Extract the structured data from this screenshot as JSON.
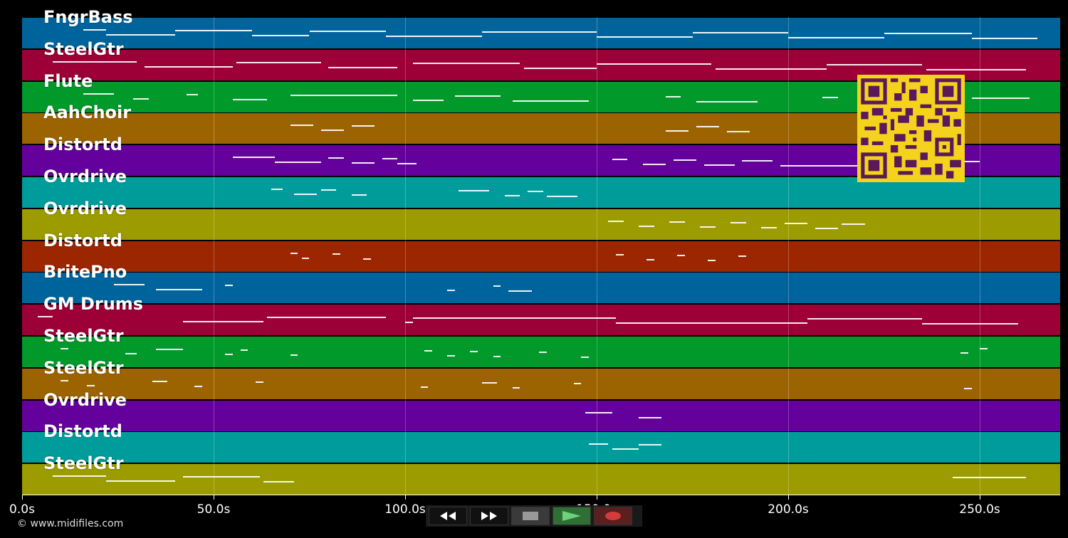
{
  "tracks": [
    {
      "name": "FngrBass",
      "color": "#00649c"
    },
    {
      "name": "SteelGtr",
      "color": "#9c0036"
    },
    {
      "name": "Flute",
      "color": "#00992a"
    },
    {
      "name": "AahChoir",
      "color": "#9c6400"
    },
    {
      "name": "Distortd",
      "color": "#64009c"
    },
    {
      "name": "Ovrdrive",
      "color": "#009c9c"
    },
    {
      "name": "Ovrdrive",
      "color": "#9c9c00"
    },
    {
      "name": "Distortd",
      "color": "#9c2600"
    },
    {
      "name": "BritePno",
      "color": "#00649c"
    },
    {
      "name": "GM Drums",
      "color": "#9c0036"
    },
    {
      "name": "SteelGtr",
      "color": "#00992a"
    },
    {
      "name": "SteelGtr",
      "color": "#9c6400"
    },
    {
      "name": "Ovrdrive",
      "color": "#64009c"
    },
    {
      "name": "Distortd",
      "color": "#009c9c"
    },
    {
      "name": "SteelGtr",
      "color": "#9c9c00"
    }
  ],
  "time_axis": {
    "max_seconds": 271,
    "ticks": [
      {
        "value": 0,
        "label": "0.0s"
      },
      {
        "value": 50,
        "label": "50.0s"
      },
      {
        "value": 100,
        "label": "100.0s"
      },
      {
        "value": 150,
        "label": "150.0s"
      },
      {
        "value": 200,
        "label": "200.0s"
      },
      {
        "value": 250,
        "label": "250.0s"
      }
    ]
  },
  "note_segments": [
    [
      [
        16,
        22
      ],
      [
        22,
        40
      ],
      [
        40,
        60
      ],
      [
        60,
        75
      ],
      [
        75,
        95
      ],
      [
        95,
        120
      ],
      [
        120,
        150
      ],
      [
        150,
        175
      ],
      [
        175,
        200
      ],
      [
        200,
        225
      ],
      [
        225,
        248
      ],
      [
        248,
        265
      ]
    ],
    [
      [
        8,
        30
      ],
      [
        32,
        55
      ],
      [
        56,
        78
      ],
      [
        80,
        98
      ],
      [
        102,
        130
      ],
      [
        131,
        150
      ],
      [
        150,
        180
      ],
      [
        181,
        210
      ],
      [
        210,
        235
      ],
      [
        236,
        262
      ]
    ],
    [
      [
        16,
        24
      ],
      [
        29,
        33
      ],
      [
        43,
        46
      ],
      [
        55,
        64
      ],
      [
        70,
        98
      ],
      [
        102,
        110
      ],
      [
        113,
        125
      ],
      [
        128,
        148
      ],
      [
        168,
        172
      ],
      [
        176,
        192
      ],
      [
        209,
        213
      ],
      [
        218,
        245
      ],
      [
        248,
        263
      ]
    ],
    [
      [
        70,
        76
      ],
      [
        78,
        84
      ],
      [
        86,
        92
      ],
      [
        168,
        174
      ],
      [
        176,
        182
      ],
      [
        184,
        190
      ]
    ],
    [
      [
        55,
        66
      ],
      [
        66,
        78
      ],
      [
        80,
        84
      ],
      [
        86,
        92
      ],
      [
        94,
        98
      ],
      [
        98,
        103
      ],
      [
        154,
        158
      ],
      [
        162,
        168
      ],
      [
        170,
        176
      ],
      [
        178,
        186
      ],
      [
        188,
        196
      ],
      [
        198,
        220
      ],
      [
        222,
        250
      ]
    ],
    [
      [
        65,
        68
      ],
      [
        71,
        77
      ],
      [
        78,
        82
      ],
      [
        86,
        90
      ],
      [
        114,
        122
      ],
      [
        126,
        130
      ],
      [
        132,
        136
      ],
      [
        137,
        145
      ]
    ],
    [
      [
        153,
        157
      ],
      [
        161,
        165
      ],
      [
        169,
        173
      ],
      [
        177,
        181
      ],
      [
        185,
        189
      ],
      [
        193,
        197
      ],
      [
        199,
        205
      ],
      [
        207,
        213
      ],
      [
        214,
        220
      ]
    ],
    [
      [
        70,
        72
      ],
      [
        73,
        75
      ],
      [
        81,
        83
      ],
      [
        89,
        91
      ],
      [
        155,
        157
      ],
      [
        163,
        165
      ],
      [
        171,
        173
      ],
      [
        179,
        181
      ],
      [
        187,
        189
      ]
    ],
    [
      [
        24,
        32
      ],
      [
        35,
        47
      ],
      [
        53,
        55
      ],
      [
        111,
        113
      ],
      [
        123,
        125
      ],
      [
        127,
        133
      ]
    ],
    [
      [
        4,
        8
      ],
      [
        42,
        63
      ],
      [
        64,
        95
      ],
      [
        100,
        102
      ],
      [
        102,
        155
      ],
      [
        155,
        205
      ],
      [
        205,
        235
      ],
      [
        235,
        260
      ]
    ],
    [
      [
        10,
        12
      ],
      [
        27,
        30
      ],
      [
        35,
        42
      ],
      [
        53,
        55
      ],
      [
        57,
        59
      ],
      [
        70,
        72
      ],
      [
        105,
        107
      ],
      [
        111,
        113
      ],
      [
        117,
        119
      ],
      [
        123,
        125
      ],
      [
        135,
        137
      ],
      [
        146,
        148
      ],
      [
        245,
        247
      ],
      [
        250,
        252
      ]
    ],
    [
      [
        10,
        12
      ],
      [
        17,
        19
      ],
      [
        34,
        38
      ],
      [
        45,
        47
      ],
      [
        61,
        63
      ],
      [
        104,
        106
      ],
      [
        120,
        124
      ],
      [
        128,
        130
      ],
      [
        144,
        146
      ],
      [
        246,
        248
      ]
    ],
    [
      [
        147,
        154
      ],
      [
        161,
        167
      ]
    ],
    [
      [
        148,
        153
      ],
      [
        154,
        161
      ],
      [
        161,
        167
      ]
    ],
    [
      [
        8,
        22
      ],
      [
        22,
        40
      ],
      [
        42,
        62
      ],
      [
        63,
        71
      ],
      [
        243,
        262
      ]
    ]
  ],
  "footer": {
    "copyright": "© www.midifiles.com"
  },
  "controls": {
    "rewind_icon": "rewind-icon",
    "fast_forward_icon": "fast-forward-icon",
    "stop_icon": "stop-icon",
    "play_icon": "play-icon",
    "record_icon": "record-icon"
  }
}
